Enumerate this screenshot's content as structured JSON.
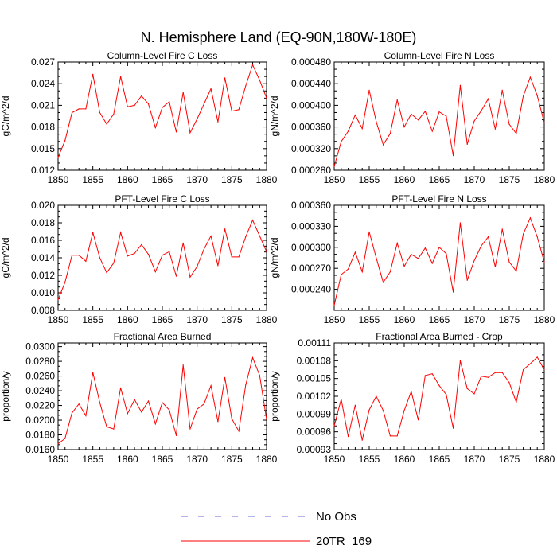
{
  "figure": {
    "title": "N. Hemisphere Land (EQ-90N,180W-180E)"
  },
  "legend": {
    "entries": [
      {
        "label": "No Obs",
        "style": "dashed",
        "color": "#6a6ad8"
      },
      {
        "label": "20TR_169",
        "style": "solid",
        "color": "#ff0000"
      }
    ]
  },
  "colors": {
    "series": "#ff0000",
    "axes": "#000000"
  },
  "chart_data": [
    {
      "type": "line",
      "title": "Column-Level Fire C Loss",
      "xlabel": "",
      "ylabel": "gC/m^2/d",
      "xlim": [
        1850,
        1880
      ],
      "ylim": [
        0.012,
        0.027
      ],
      "xticks": [
        1850,
        1855,
        1860,
        1865,
        1870,
        1875,
        1880
      ],
      "xticklabels": [
        "1850",
        "1855",
        "1860",
        "1865",
        "1870",
        "1875",
        "1880"
      ],
      "yticks": [
        0.012,
        0.015,
        0.018,
        0.021,
        0.024,
        0.027
      ],
      "yticklabels": [
        "0.012",
        "0.015",
        "0.018",
        "0.021",
        "0.024",
        "0.027"
      ],
      "series": [
        {
          "name": "20TR_169",
          "x": [
            1850,
            1851,
            1852,
            1853,
            1854,
            1855,
            1856,
            1857,
            1858,
            1859,
            1860,
            1861,
            1862,
            1863,
            1864,
            1865,
            1866,
            1867,
            1868,
            1869,
            1870,
            1871,
            1872,
            1873,
            1874,
            1875,
            1876,
            1877,
            1878,
            1879,
            1880
          ],
          "values": [
            0.0138,
            0.0161,
            0.02,
            0.0205,
            0.0205,
            0.0253,
            0.02,
            0.0184,
            0.0198,
            0.025,
            0.0208,
            0.021,
            0.0223,
            0.0212,
            0.0179,
            0.0207,
            0.0215,
            0.0173,
            0.0228,
            0.0172,
            0.0191,
            0.0212,
            0.0233,
            0.0187,
            0.0248,
            0.0202,
            0.0204,
            0.0237,
            0.0266,
            0.0245,
            0.022
          ]
        }
      ]
    },
    {
      "type": "line",
      "title": "Column-Level Fire N Loss",
      "xlabel": "",
      "ylabel": "gN/m^2/d",
      "xlim": [
        1850,
        1880
      ],
      "ylim": [
        0.00028,
        0.00048
      ],
      "xticks": [
        1850,
        1855,
        1860,
        1865,
        1870,
        1875,
        1880
      ],
      "xticklabels": [
        "1850",
        "1855",
        "1860",
        "1865",
        "1870",
        "1875",
        "1880"
      ],
      "yticks": [
        0.00028,
        0.00032,
        0.00036,
        0.0004,
        0.00044,
        0.00048
      ],
      "yticklabels": [
        "0.000280",
        "0.000320",
        "0.000360",
        "0.000400",
        "0.000440",
        "0.000480"
      ],
      "series": [
        {
          "name": "20TR_169",
          "x": [
            1850,
            1851,
            1852,
            1853,
            1854,
            1855,
            1856,
            1857,
            1858,
            1859,
            1860,
            1861,
            1862,
            1863,
            1864,
            1865,
            1866,
            1867,
            1868,
            1869,
            1870,
            1871,
            1872,
            1873,
            1874,
            1875,
            1876,
            1877,
            1878,
            1879,
            1880
          ],
          "values": [
            0.000287,
            0.000333,
            0.000352,
            0.000382,
            0.000357,
            0.000428,
            0.00037,
            0.000327,
            0.000348,
            0.00041,
            0.00036,
            0.000384,
            0.000373,
            0.000389,
            0.000352,
            0.000388,
            0.00038,
            0.000307,
            0.000437,
            0.000328,
            0.000371,
            0.00039,
            0.000412,
            0.000356,
            0.000428,
            0.000365,
            0.000348,
            0.000417,
            0.000452,
            0.000418,
            0.000368
          ]
        }
      ]
    },
    {
      "type": "line",
      "title": "PFT-Level Fire C Loss",
      "xlabel": "",
      "ylabel": "gC/m^2/d",
      "xlim": [
        1850,
        1880
      ],
      "ylim": [
        0.008,
        0.02
      ],
      "xticks": [
        1850,
        1855,
        1860,
        1865,
        1870,
        1875,
        1880
      ],
      "xticklabels": [
        "1850",
        "1855",
        "1860",
        "1865",
        "1870",
        "1875",
        "1880"
      ],
      "yticks": [
        0.008,
        0.01,
        0.012,
        0.014,
        0.016,
        0.018,
        0.02
      ],
      "yticklabels": [
        "0.008",
        "0.010",
        "0.012",
        "0.014",
        "0.016",
        "0.018",
        "0.020"
      ],
      "series": [
        {
          "name": "20TR_169",
          "x": [
            1850,
            1851,
            1852,
            1853,
            1854,
            1855,
            1856,
            1857,
            1858,
            1859,
            1860,
            1861,
            1862,
            1863,
            1864,
            1865,
            1866,
            1867,
            1868,
            1869,
            1870,
            1871,
            1872,
            1873,
            1874,
            1875,
            1876,
            1877,
            1878,
            1879,
            1880
          ],
          "values": [
            0.0092,
            0.0112,
            0.0143,
            0.0143,
            0.0136,
            0.0169,
            0.014,
            0.0123,
            0.0134,
            0.0169,
            0.0142,
            0.0145,
            0.0155,
            0.0144,
            0.0124,
            0.0143,
            0.0147,
            0.0119,
            0.0157,
            0.0118,
            0.013,
            0.015,
            0.0165,
            0.0131,
            0.0173,
            0.0141,
            0.0141,
            0.0164,
            0.0183,
            0.0165,
            0.0147
          ]
        }
      ]
    },
    {
      "type": "line",
      "title": "PFT-Level Fire N Loss",
      "xlabel": "",
      "ylabel": "gN/m^2/d",
      "xlim": [
        1850,
        1880
      ],
      "ylim": [
        0.00021,
        0.00036
      ],
      "xticks": [
        1850,
        1855,
        1860,
        1865,
        1870,
        1875,
        1880
      ],
      "xticklabels": [
        "1850",
        "1855",
        "1860",
        "1865",
        "1870",
        "1875",
        "1880"
      ],
      "yticks": [
        0.00024,
        0.00027,
        0.0003,
        0.00033,
        0.00036
      ],
      "yticklabels": [
        "0.000240",
        "0.000270",
        "0.000300",
        "0.000330",
        "0.000360"
      ],
      "series": [
        {
          "name": "20TR_169",
          "x": [
            1850,
            1851,
            1852,
            1853,
            1854,
            1855,
            1856,
            1857,
            1858,
            1859,
            1860,
            1861,
            1862,
            1863,
            1864,
            1865,
            1866,
            1867,
            1868,
            1869,
            1870,
            1871,
            1872,
            1873,
            1874,
            1875,
            1876,
            1877,
            1878,
            1879,
            1880
          ],
          "values": [
            0.000217,
            0.000261,
            0.000269,
            0.000293,
            0.000265,
            0.000322,
            0.000285,
            0.00025,
            0.000265,
            0.000306,
            0.000273,
            0.00029,
            0.000284,
            0.000299,
            0.000277,
            0.0003,
            0.000291,
            0.000236,
            0.000335,
            0.000253,
            0.000281,
            0.000302,
            0.000315,
            0.000272,
            0.000326,
            0.000279,
            0.000266,
            0.000319,
            0.000342,
            0.000315,
            0.000279
          ]
        }
      ]
    },
    {
      "type": "line",
      "title": "Fractional Area Burned",
      "xlabel": "",
      "ylabel": "proportion/y",
      "xlim": [
        1850,
        1880
      ],
      "ylim": [
        0.016,
        0.0305
      ],
      "xticks": [
        1850,
        1855,
        1860,
        1865,
        1870,
        1875,
        1880
      ],
      "xticklabels": [
        "1850",
        "1855",
        "1860",
        "1865",
        "1870",
        "1875",
        "1880"
      ],
      "yticks": [
        0.016,
        0.018,
        0.02,
        0.022,
        0.024,
        0.026,
        0.028,
        0.03
      ],
      "yticklabels": [
        "0.0160",
        "0.0180",
        "0.0200",
        "0.0220",
        "0.0240",
        "0.0260",
        "0.0280",
        "0.0300"
      ],
      "series": [
        {
          "name": "20TR_169",
          "x": [
            1850,
            1851,
            1852,
            1853,
            1854,
            1855,
            1856,
            1857,
            1858,
            1859,
            1860,
            1861,
            1862,
            1863,
            1864,
            1865,
            1866,
            1867,
            1868,
            1869,
            1870,
            1871,
            1872,
            1873,
            1874,
            1875,
            1876,
            1877,
            1878,
            1879,
            1880
          ],
          "values": [
            0.0168,
            0.0175,
            0.021,
            0.0222,
            0.0206,
            0.0265,
            0.0224,
            0.0191,
            0.0188,
            0.0244,
            0.0209,
            0.0228,
            0.0211,
            0.0226,
            0.0195,
            0.0224,
            0.0214,
            0.0179,
            0.0275,
            0.0188,
            0.0215,
            0.0222,
            0.0247,
            0.0198,
            0.0258,
            0.0202,
            0.0185,
            0.0248,
            0.0285,
            0.0261,
            0.0201
          ]
        }
      ]
    },
    {
      "type": "line",
      "title": "Fractional Area Burned - Crop",
      "xlabel": "",
      "ylabel": "proportion/y",
      "xlim": [
        1850,
        1880
      ],
      "ylim": [
        0.00093,
        0.00111
      ],
      "xticks": [
        1850,
        1855,
        1860,
        1865,
        1870,
        1875,
        1880
      ],
      "xticklabels": [
        "1850",
        "1855",
        "1860",
        "1865",
        "1870",
        "1875",
        "1880"
      ],
      "yticks": [
        0.00093,
        0.00096,
        0.00099,
        0.00102,
        0.00105,
        0.00108,
        0.00111
      ],
      "yticklabels": [
        "0.00093",
        "0.00096",
        "0.00099",
        "0.00102",
        "0.00105",
        "0.00108",
        "0.00111"
      ],
      "series": [
        {
          "name": "20TR_169",
          "x": [
            1850,
            1851,
            1852,
            1853,
            1854,
            1855,
            1856,
            1857,
            1858,
            1859,
            1860,
            1861,
            1862,
            1863,
            1864,
            1865,
            1866,
            1867,
            1868,
            1869,
            1870,
            1871,
            1872,
            1873,
            1874,
            1875,
            1876,
            1877,
            1878,
            1879,
            1880
          ],
          "values": [
            0.00097,
            0.001015,
            0.000952,
            0.001005,
            0.000946,
            0.000997,
            0.00102,
            0.000996,
            0.000953,
            0.000953,
            0.000996,
            0.001028,
            0.00098,
            0.001055,
            0.001058,
            0.001038,
            0.001023,
            0.000966,
            0.00108,
            0.001033,
            0.001024,
            0.001054,
            0.001052,
            0.00106,
            0.00106,
            0.001043,
            0.00101,
            0.001065,
            0.001075,
            0.001086,
            0.001065
          ]
        }
      ]
    }
  ]
}
